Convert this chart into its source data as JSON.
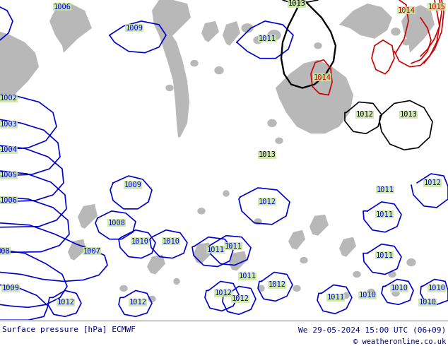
{
  "title_left": "Surface pressure [hPa] ECMWF",
  "title_right": "We 29-05-2024 15:00 UTC (06+09)",
  "copyright": "© weatheronline.co.uk",
  "bg_color": "#c8e6a0",
  "gray_color": "#b8b8b8",
  "footer_bg": "#ffffff",
  "footer_text_color": "#000080",
  "blue": "#0000cc",
  "black": "#000000",
  "red": "#cc0000",
  "lw": 1.2,
  "label_fs": 7.5,
  "footer_fs": 8.0,
  "figsize": [
    6.34,
    4.9
  ],
  "dpi": 100
}
